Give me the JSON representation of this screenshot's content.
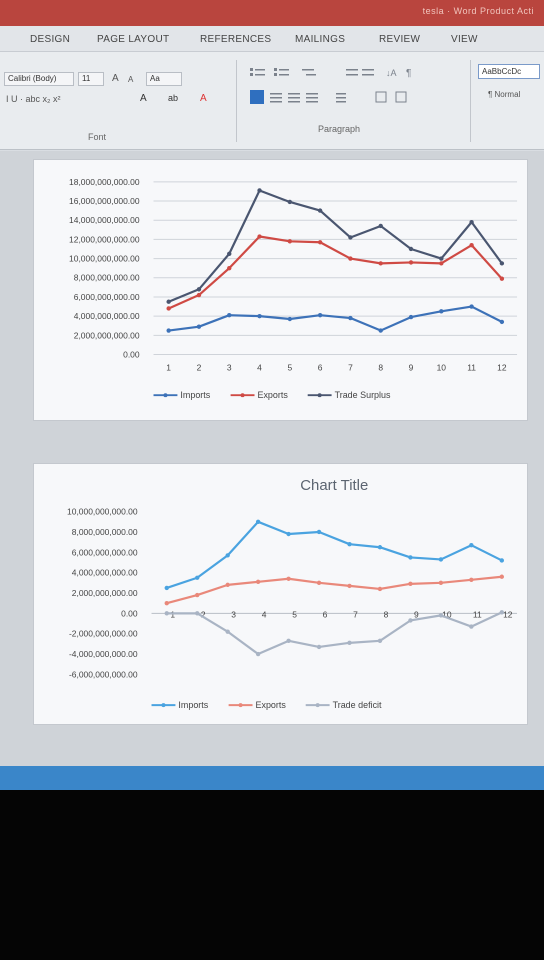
{
  "window": {
    "title": "tesla · Word  Product Acti"
  },
  "tabs": [
    {
      "label": "DESIGN"
    },
    {
      "label": "PAGE LAYOUT"
    },
    {
      "label": "REFERENCES"
    },
    {
      "label": "MAILINGS"
    },
    {
      "label": "REVIEW"
    },
    {
      "label": "VIEW"
    }
  ],
  "ribbon": {
    "font_name": "Calibri (Body)",
    "font_size": "11",
    "grow_font": "A",
    "shrink_font": "A",
    "change_case": "Aa",
    "bold_row": "I  U  ·  abc  x₂  x²",
    "text_effects": "A",
    "highlight": "ab",
    "font_color": "A",
    "font_group": "Font",
    "paragraph_group": "Paragraph",
    "style_preview": "AaBbCcDc",
    "style_name": "¶ Normal",
    "colors": {
      "accent": "#2f6fbf",
      "text": "#444444"
    }
  },
  "charts": [
    {
      "chart_data": {
        "type": "line",
        "title": "",
        "categories": [
          "1",
          "2",
          "3",
          "4",
          "5",
          "6",
          "7",
          "8",
          "9",
          "10",
          "11",
          "12"
        ],
        "ylim": [
          0,
          18000000000000
        ],
        "y_ticks": [
          "18,000,000,000.00",
          "16,000,000,000.00",
          "14,000,000,000.00",
          "12,000,000,000.00",
          "10,000,000,000.00",
          "8,000,000,000.00",
          "6,000,000,000.00",
          "4,000,000,000.00",
          "2,000,000,000.00",
          "0.00"
        ],
        "series": [
          {
            "name": "Imports",
            "color": "#3d72b8",
            "values": [
              2500000000000,
              2900000000000,
              4100000000000,
              4000000000000,
              3700000000000,
              4100000000000,
              3800000000000,
              2500000000000,
              3900000000000,
              4500000000000,
              5000000000000,
              3400000000000
            ]
          },
          {
            "name": "Exports",
            "color": "#cf4a44",
            "values": [
              4800000000000,
              6200000000000,
              9000000000000,
              12300000000000,
              11800000000000,
              11700000000000,
              10000000000000,
              9500000000000,
              9600000000000,
              9500000000000,
              11400000000000,
              7900000000000
            ]
          },
          {
            "name": "Trade Surplus",
            "color": "#4a5670",
            "values": [
              5500000000000,
              6800000000000,
              10500000000000,
              17100000000000,
              15900000000000,
              15000000000000,
              12200000000000,
              13400000000000,
              11000000000000,
              10000000000000,
              13800000000000,
              9500000000000
            ]
          }
        ],
        "legend": "bottom",
        "grid": true
      }
    },
    {
      "chart_data": {
        "type": "line",
        "title": "Chart Title",
        "categories": [
          "1",
          "2",
          "3",
          "4",
          "5",
          "6",
          "7",
          "8",
          "9",
          "10",
          "11",
          "12"
        ],
        "ylim": [
          -6000000000000,
          10000000000000
        ],
        "y_ticks": [
          "10,000,000,000.00",
          "8,000,000,000.00",
          "6,000,000,000.00",
          "4,000,000,000.00",
          "2,000,000,000.00",
          "0.00",
          "-2,000,000,000.00",
          "-4,000,000,000.00",
          "-6,000,000,000.00"
        ],
        "series": [
          {
            "name": "Imports",
            "color": "#4aa3e0",
            "values": [
              2500000000000,
              3500000000000,
              5700000000000,
              9000000000000,
              7800000000000,
              8000000000000,
              6800000000000,
              6500000000000,
              5500000000000,
              5300000000000,
              6700000000000,
              5200000000000
            ]
          },
          {
            "name": "Exports",
            "color": "#e9887a",
            "values": [
              1000000000000,
              1800000000000,
              2800000000000,
              3100000000000,
              3400000000000,
              3000000000000,
              2700000000000,
              2400000000000,
              2900000000000,
              3000000000000,
              3300000000000,
              3600000000000
            ]
          },
          {
            "name": "Trade deficit",
            "color": "#a9b4c4",
            "values": [
              0,
              0,
              -1800000000000,
              -4000000000000,
              -2700000000000,
              -3300000000000,
              -2900000000000,
              -2700000000000,
              -700000000000,
              -200000000000,
              -1300000000000,
              100000000000
            ]
          }
        ],
        "legend": "bottom",
        "grid": false
      }
    }
  ]
}
